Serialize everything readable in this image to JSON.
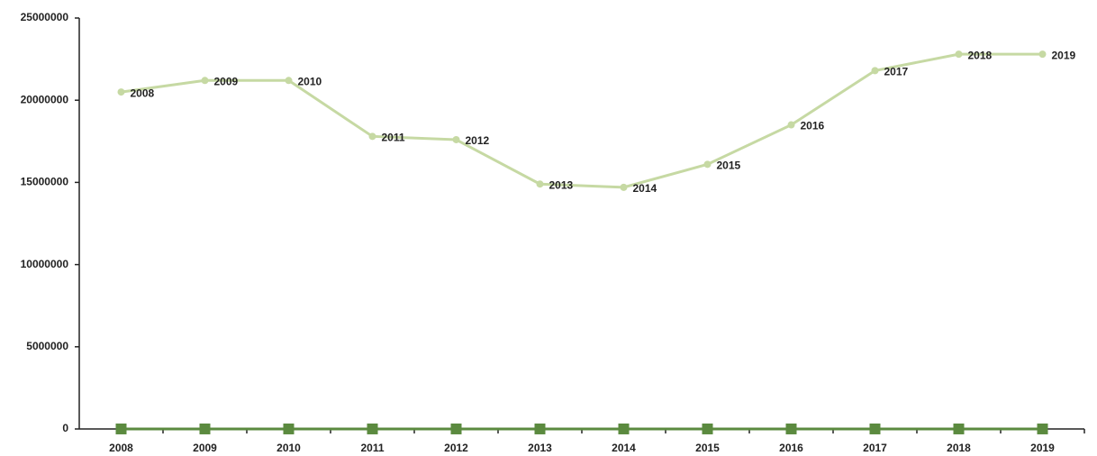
{
  "chart_data": {
    "type": "line",
    "categories": [
      "2008",
      "2009",
      "2010",
      "2011",
      "2012",
      "2013",
      "2014",
      "2015",
      "2016",
      "2017",
      "2018",
      "2019"
    ],
    "series": [
      {
        "color": "#c6d9a3",
        "values": [
          20500000,
          21200000,
          21200000,
          17800000,
          17600000,
          14900000,
          14700000,
          16100000,
          18500000,
          21800000,
          22800000,
          22800000
        ]
      },
      {
        "color": "#5b8a3f",
        "values": [
          2008,
          2009,
          2010,
          2011,
          2012,
          2013,
          2014,
          2015,
          2016,
          2017,
          2018,
          2019
        ]
      }
    ],
    "ylim": [
      0,
      25000000
    ],
    "yticks": [
      0,
      5000000,
      10000000,
      15000000,
      20000000,
      25000000
    ],
    "grid": false
  }
}
